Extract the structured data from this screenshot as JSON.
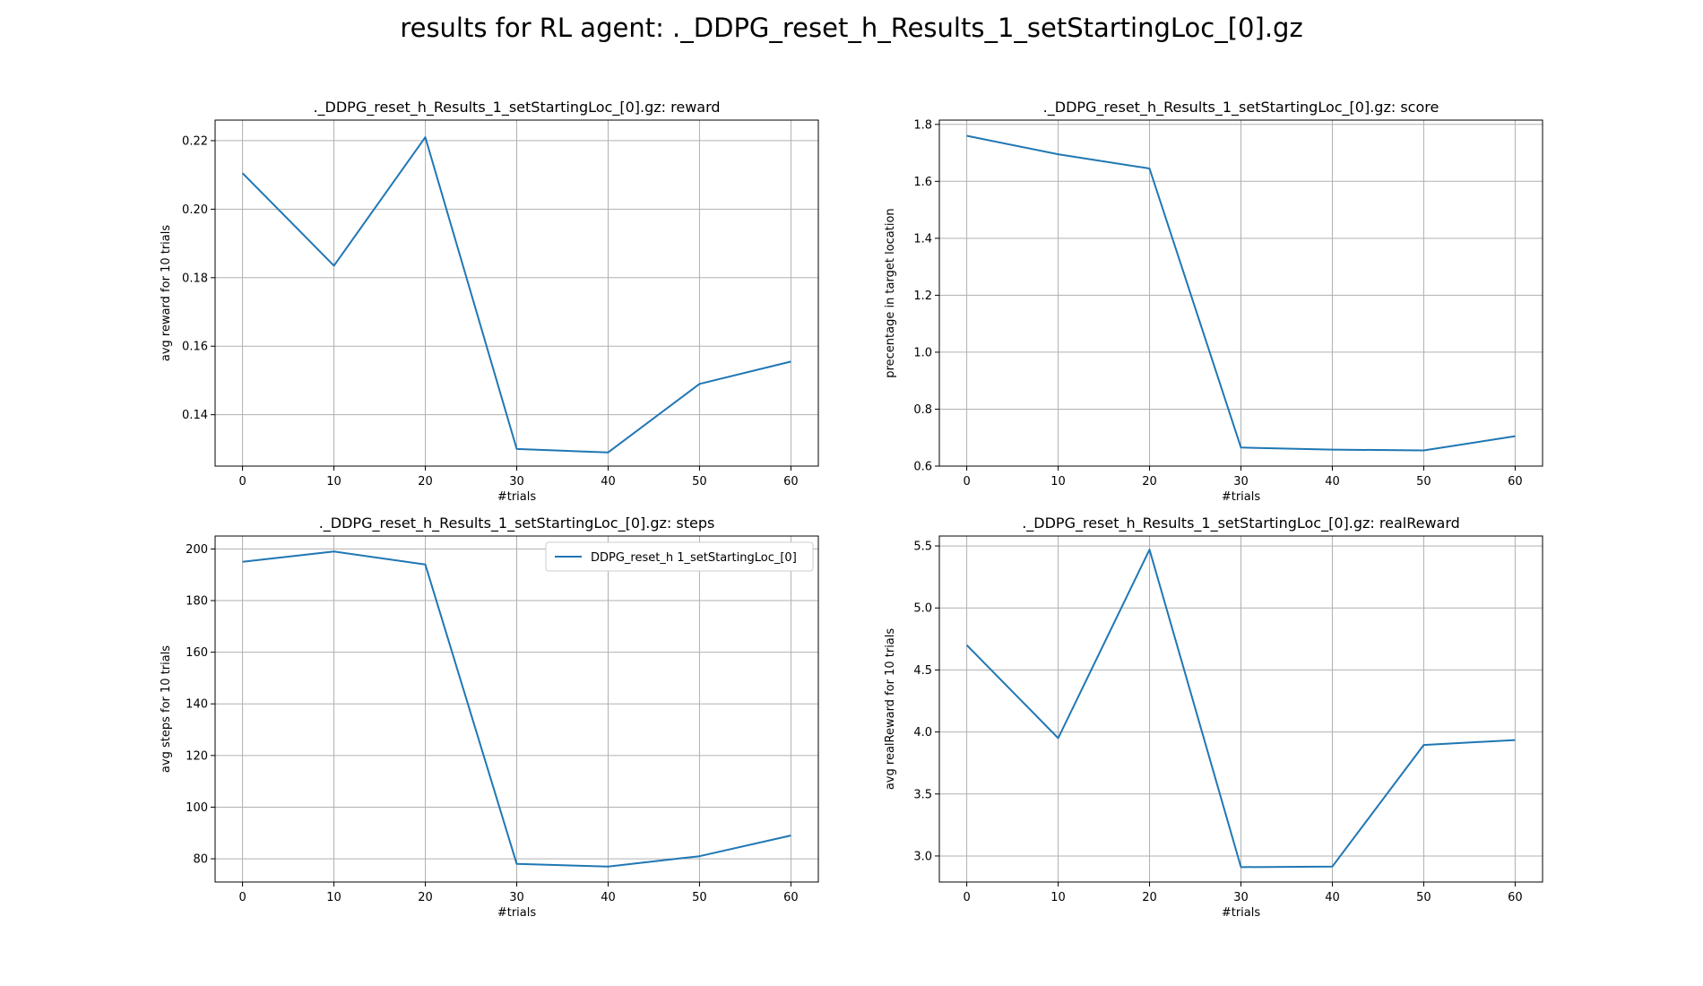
{
  "figure": {
    "suptitle": "results for RL agent: ._DDPG_reset_h_Results_1_setStartingLoc_[0].gz"
  },
  "colors": {
    "line": "#1f77b4",
    "grid": "#b0b0b0",
    "axis": "#000000"
  },
  "chart_data": [
    {
      "type": "line",
      "title": "._DDPG_reset_h_Results_1_setStartingLoc_[0].gz: reward",
      "xlabel": "#trials",
      "ylabel": "avg reward for 10 trials",
      "xlim": [
        -3,
        63
      ],
      "ylim": [
        0.125,
        0.226
      ],
      "xticks": [
        0,
        10,
        20,
        30,
        40,
        50,
        60
      ],
      "yticks": [
        0.14,
        0.16,
        0.18,
        0.2,
        0.22
      ],
      "ytick_labels": [
        "0.14",
        "0.16",
        "0.18",
        "0.20",
        "0.22"
      ],
      "grid": true,
      "x": [
        0,
        10,
        20,
        30,
        40,
        50,
        60
      ],
      "series": [
        {
          "values": [
            0.2105,
            0.1835,
            0.221,
            0.13,
            0.129,
            0.149,
            0.1555
          ]
        }
      ]
    },
    {
      "type": "line",
      "title": "._DDPG_reset_h_Results_1_setStartingLoc_[0].gz: score",
      "xlabel": "#trials",
      "ylabel": "precentage in target location",
      "xlim": [
        -3,
        63
      ],
      "ylim": [
        0.6,
        1.815
      ],
      "xticks": [
        0,
        10,
        20,
        30,
        40,
        50,
        60
      ],
      "yticks": [
        0.6,
        0.8,
        1.0,
        1.2,
        1.4,
        1.6,
        1.8
      ],
      "ytick_labels": [
        "0.6",
        "0.8",
        "1.0",
        "1.2",
        "1.4",
        "1.6",
        "1.8"
      ],
      "grid": true,
      "x": [
        0,
        10,
        20,
        30,
        40,
        50,
        60
      ],
      "series": [
        {
          "values": [
            1.76,
            1.695,
            1.645,
            0.665,
            0.658,
            0.655,
            0.705
          ]
        }
      ]
    },
    {
      "type": "line",
      "title": "._DDPG_reset_h_Results_1_setStartingLoc_[0].gz: steps",
      "xlabel": "#trials",
      "ylabel": "avg steps for 10 trials",
      "xlim": [
        -3,
        63
      ],
      "ylim": [
        71,
        205
      ],
      "xticks": [
        0,
        10,
        20,
        30,
        40,
        50,
        60
      ],
      "yticks": [
        80,
        100,
        120,
        140,
        160,
        180,
        200
      ],
      "ytick_labels": [
        "80",
        "100",
        "120",
        "140",
        "160",
        "180",
        "200"
      ],
      "grid": true,
      "legend": "top-right",
      "x": [
        0,
        10,
        20,
        30,
        40,
        50,
        60
      ],
      "series": [
        {
          "name": "DDPG_reset_h 1_setStartingLoc_[0]",
          "values": [
            195,
            199,
            194,
            78,
            77,
            81,
            89
          ]
        }
      ]
    },
    {
      "type": "line",
      "title": "._DDPG_reset_h_Results_1_setStartingLoc_[0].gz: realReward",
      "xlabel": "#trials",
      "ylabel": "avg realReward for 10 trials",
      "xlim": [
        -3,
        63
      ],
      "ylim": [
        2.79,
        5.58
      ],
      "xticks": [
        0,
        10,
        20,
        30,
        40,
        50,
        60
      ],
      "yticks": [
        3.0,
        3.5,
        4.0,
        4.5,
        5.0,
        5.5
      ],
      "ytick_labels": [
        "3.0",
        "3.5",
        "4.0",
        "4.5",
        "5.0",
        "5.5"
      ],
      "grid": true,
      "x": [
        0,
        10,
        20,
        30,
        40,
        50,
        60
      ],
      "series": [
        {
          "values": [
            4.7,
            3.95,
            5.47,
            2.91,
            2.915,
            3.895,
            3.935
          ]
        }
      ]
    }
  ]
}
